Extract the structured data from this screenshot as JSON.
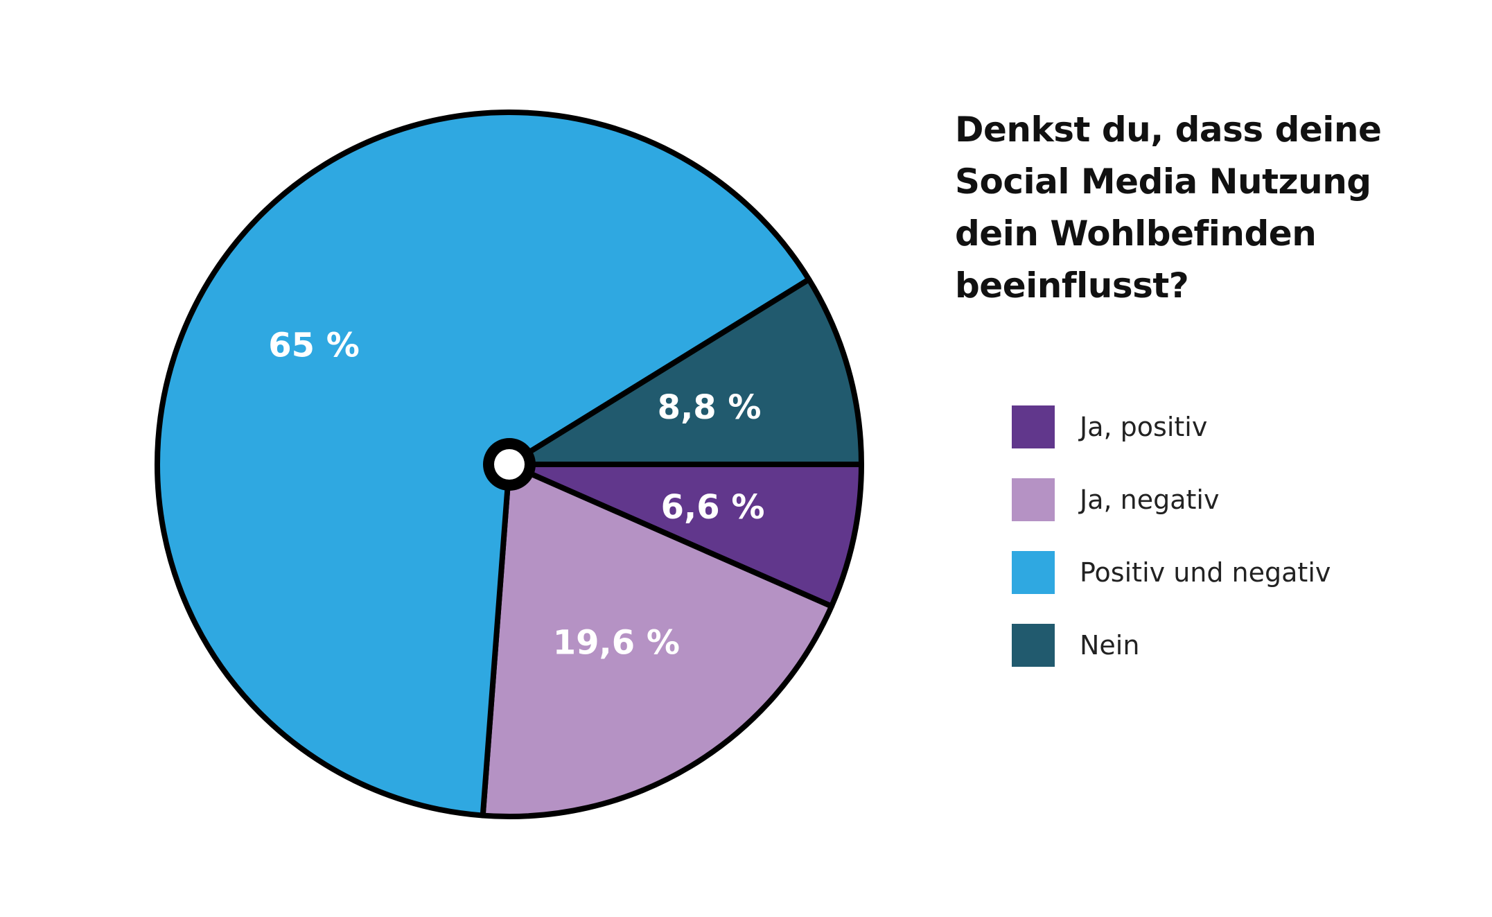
{
  "chart_data": {
    "type": "pie",
    "title": "Denkst du, dass deine Social Media Nutzung dein Wohlbefinden beeinflusst?",
    "title_lines": [
      "Denkst du, dass deine",
      "Social Media Nutzung",
      "dein Wohlbefinden",
      "beeinflusst?"
    ],
    "slices": [
      {
        "name": "Ja, positiv",
        "value": 6.6,
        "label": "6,6 %",
        "color": "#61378c"
      },
      {
        "name": "Ja, negativ",
        "value": 19.6,
        "label": "19,6 %",
        "color": "#b592c4"
      },
      {
        "name": "Positiv und negativ",
        "value": 65,
        "label": "65 %",
        "color": "#2fa8e1"
      },
      {
        "name": "Nein",
        "value": 8.8,
        "label": "8,8 %",
        "color": "#215a6e"
      }
    ],
    "legend": [
      {
        "label": "Ja, positiv",
        "color": "#61378c"
      },
      {
        "label": "Ja, negativ",
        "color": "#b592c4"
      },
      {
        "label": "Positiv und negativ",
        "color": "#2fa8e1"
      },
      {
        "label": "Nein",
        "color": "#215a6e"
      }
    ],
    "legend_position": "right",
    "start_angle": "3 o'clock",
    "direction": "clockwise"
  }
}
